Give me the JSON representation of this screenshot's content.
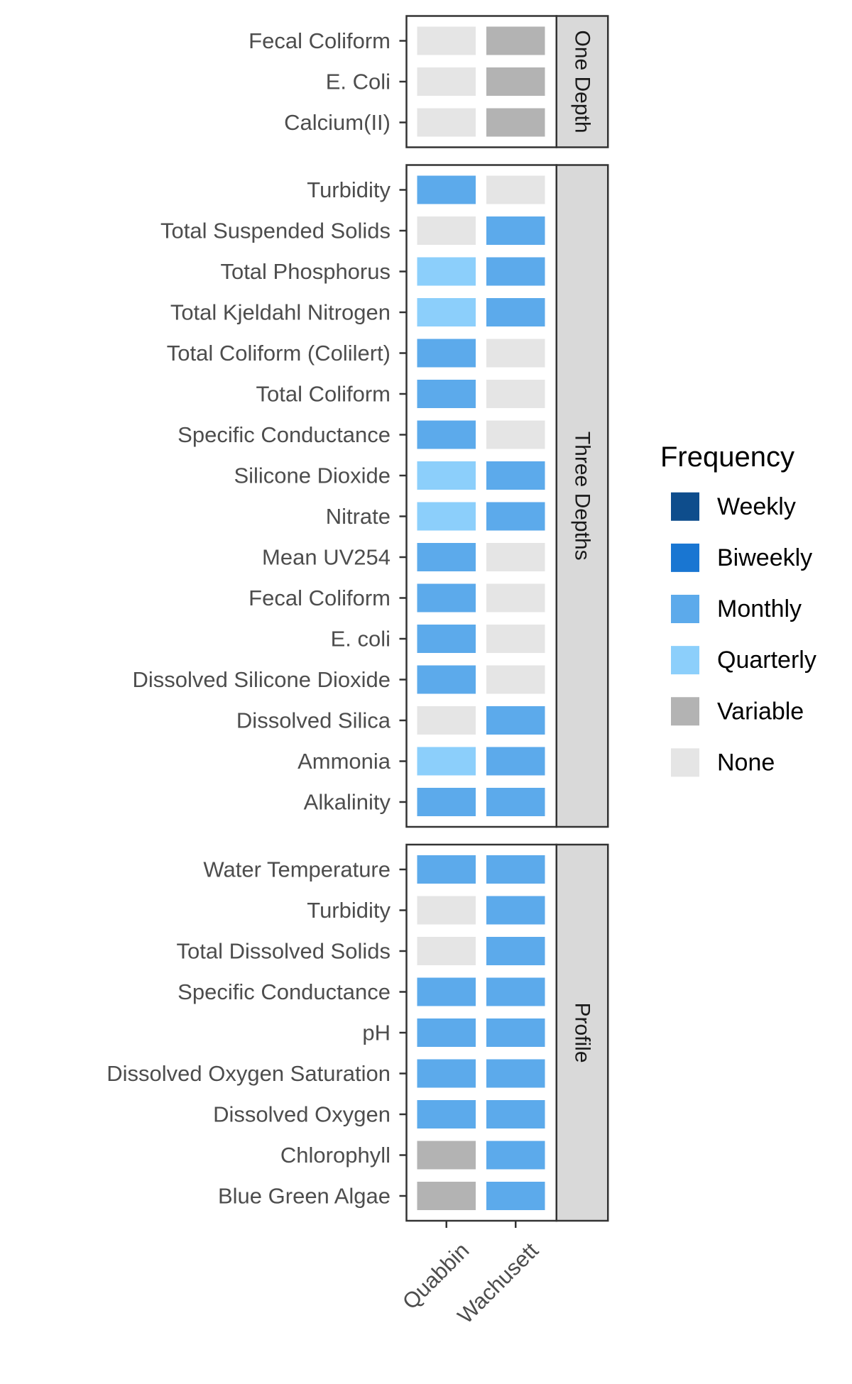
{
  "chart_data": {
    "type": "heatmap",
    "x": [
      "Quabbin",
      "Wachusett"
    ],
    "legend": {
      "title": "Frequency",
      "position": "right",
      "levels": [
        "Weekly",
        "Biweekly",
        "Monthly",
        "Quarterly",
        "Variable",
        "None"
      ]
    },
    "colors": {
      "Weekly": "#0e4d8c",
      "Biweekly": "#1976d2",
      "Monthly": "#5caaeb",
      "Quarterly": "#8ccffb",
      "Variable": "#b3b3b3",
      "None": "#e5e5e5"
    },
    "facets": [
      {
        "name": "One Depth",
        "rows": [
          {
            "label": "Fecal Coliform",
            "values": [
              "None",
              "Variable"
            ]
          },
          {
            "label": "E. Coli",
            "values": [
              "None",
              "Variable"
            ]
          },
          {
            "label": "Calcium(II)",
            "values": [
              "None",
              "Variable"
            ]
          }
        ]
      },
      {
        "name": "Three Depths",
        "rows": [
          {
            "label": "Turbidity",
            "values": [
              "Monthly",
              "None"
            ]
          },
          {
            "label": "Total Suspended Solids",
            "values": [
              "None",
              "Monthly"
            ]
          },
          {
            "label": "Total Phosphorus",
            "values": [
              "Quarterly",
              "Monthly"
            ]
          },
          {
            "label": "Total Kjeldahl Nitrogen",
            "values": [
              "Quarterly",
              "Monthly"
            ]
          },
          {
            "label": "Total Coliform (Colilert)",
            "values": [
              "Monthly",
              "None"
            ]
          },
          {
            "label": "Total Coliform",
            "values": [
              "Monthly",
              "None"
            ]
          },
          {
            "label": "Specific Conductance",
            "values": [
              "Monthly",
              "None"
            ]
          },
          {
            "label": "Silicone Dioxide",
            "values": [
              "Quarterly",
              "Monthly"
            ]
          },
          {
            "label": "Nitrate",
            "values": [
              "Quarterly",
              "Monthly"
            ]
          },
          {
            "label": "Mean UV254",
            "values": [
              "Monthly",
              "None"
            ]
          },
          {
            "label": "Fecal Coliform",
            "values": [
              "Monthly",
              "None"
            ]
          },
          {
            "label": "E. coli",
            "values": [
              "Monthly",
              "None"
            ]
          },
          {
            "label": "Dissolved Silicone Dioxide",
            "values": [
              "Monthly",
              "None"
            ]
          },
          {
            "label": "Dissolved Silica",
            "values": [
              "None",
              "Monthly"
            ]
          },
          {
            "label": "Ammonia",
            "values": [
              "Quarterly",
              "Monthly"
            ]
          },
          {
            "label": "Alkalinity",
            "values": [
              "Monthly",
              "Monthly"
            ]
          }
        ]
      },
      {
        "name": "Profile",
        "rows": [
          {
            "label": "Water Temperature",
            "values": [
              "Monthly",
              "Monthly"
            ]
          },
          {
            "label": "Turbidity",
            "values": [
              "None",
              "Monthly"
            ]
          },
          {
            "label": "Total Dissolved Solids",
            "values": [
              "None",
              "Monthly"
            ]
          },
          {
            "label": "Specific Conductance",
            "values": [
              "Monthly",
              "Monthly"
            ]
          },
          {
            "label": "pH",
            "values": [
              "Monthly",
              "Monthly"
            ]
          },
          {
            "label": "Dissolved Oxygen Saturation",
            "values": [
              "Monthly",
              "Monthly"
            ]
          },
          {
            "label": "Dissolved Oxygen",
            "values": [
              "Monthly",
              "Monthly"
            ]
          },
          {
            "label": "Chlorophyll",
            "values": [
              "Variable",
              "Monthly"
            ]
          },
          {
            "label": "Blue Green Algae",
            "values": [
              "Variable",
              "Monthly"
            ]
          }
        ]
      }
    ]
  }
}
